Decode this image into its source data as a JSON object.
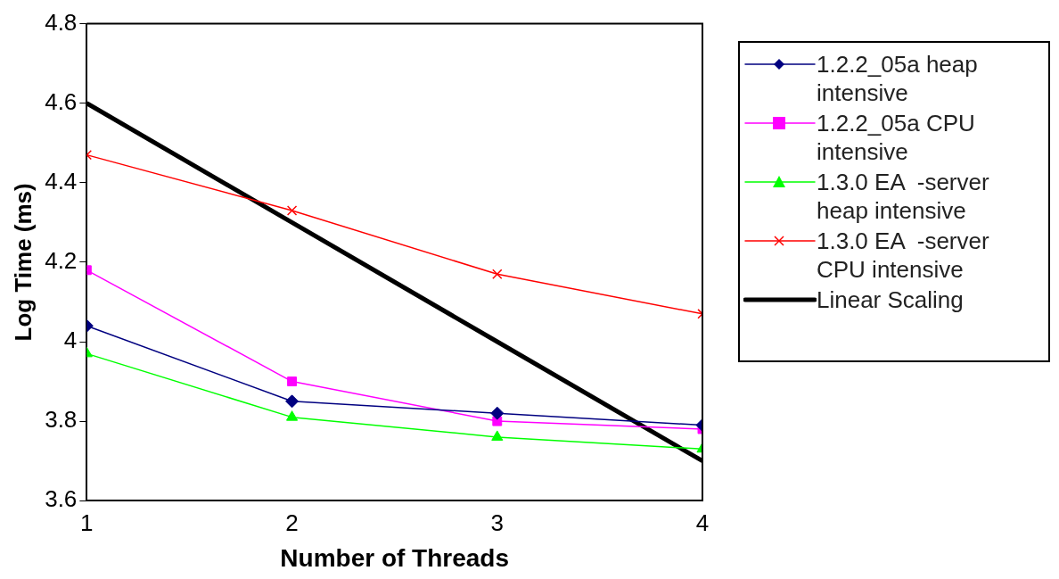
{
  "chart_data": {
    "type": "line",
    "xlabel": "Number of Threads",
    "ylabel": "Log Time (ms)",
    "x": [
      1,
      2,
      3,
      4
    ],
    "xlim": [
      1,
      4
    ],
    "xticks": [
      1,
      2,
      3,
      4
    ],
    "ylim": [
      3.6,
      4.8
    ],
    "yticks": [
      3.6,
      3.8,
      4,
      4.2,
      4.4,
      4.6,
      4.8
    ],
    "grid": false,
    "legend": "right",
    "series": [
      {
        "name": "1.2.2_05a heap intensive",
        "color": "#000080",
        "marker": "diamond",
        "values": [
          4.04,
          3.85,
          3.82,
          3.79
        ]
      },
      {
        "name": "1.2.2_05a CPU intensive",
        "color": "#ff00ff",
        "marker": "square",
        "values": [
          4.18,
          3.9,
          3.8,
          3.78
        ]
      },
      {
        "name": "1.3.0 EA  -server heap intensive",
        "color": "#00ff00",
        "marker": "triangle",
        "values": [
          3.97,
          3.81,
          3.76,
          3.73
        ]
      },
      {
        "name": "1.3.0 EA  -server CPU intensive",
        "color": "#ff0000",
        "marker": "cross",
        "values": [
          4.47,
          4.33,
          4.17,
          4.07
        ]
      },
      {
        "name": "Linear Scaling",
        "color": "#000000",
        "marker": "none",
        "values": [
          4.6,
          4.3,
          4.0,
          3.7
        ]
      }
    ]
  }
}
